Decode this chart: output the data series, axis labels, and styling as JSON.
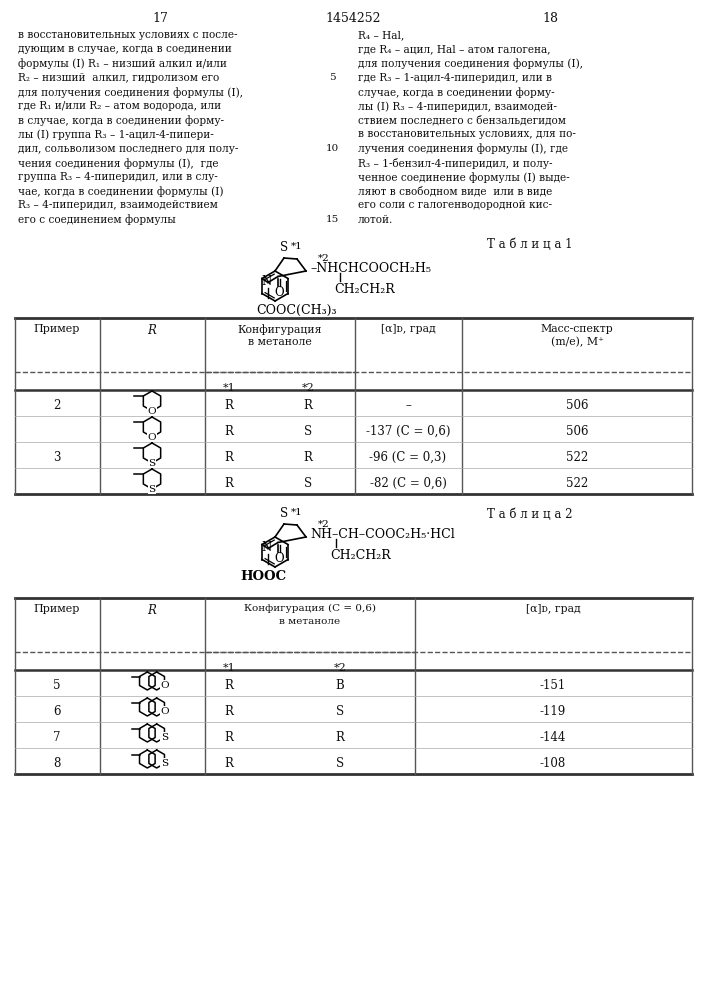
{
  "page_num_left": "17",
  "page_num_center": "1454252",
  "page_num_right": "18",
  "left_lines": [
    "в восстановительных условиях с после-",
    "дующим в случае, когда в соединении",
    "формулы (I) R₁ – низший алкил и/или",
    "R₂ – низший  алкил, гидролизом его",
    "для получения соединения формулы (I),",
    "где R₁ и/или R₂ – атом водорода, или",
    "в случае, когда в соединении форму-",
    "лы (I) группа R₃ – 1-ацил-4-пипери-",
    "дил, сольволизом последнего для полу-",
    "чения соединения формулы (I),  где",
    "группа R₃ – 4-пиперидил, или в слу-",
    "чае, когда в соединении формулы (I)",
    "R₃ – 4-пиперидил, взаимодействием",
    "его с соединением формулы"
  ],
  "right_lines": [
    "R₄ – Hal,",
    "где R₄ – ацил, Hal – атом галогена,",
    "для получения соединения формулы (I),",
    "где R₃ – 1-ацил-4-пиперидил, или в",
    "случае, когда в соединении форму-",
    "лы (I) R₃ – 4-пиперидил, взаимодей-",
    "ствием последнего с бензальдегидом",
    "в восстановительных условиях, для по-",
    "лучения соединения формулы (I), где",
    "R₃ – 1-бензил-4-пиперидил, и полу-",
    "ченное соединение формулы (I) выде-",
    "ляют в свободном виде  или в виде",
    "его соли с галогенводородной кис-",
    "лотой."
  ],
  "line_num_indices": [
    3,
    8,
    13
  ],
  "line_num_values": [
    "5",
    "10",
    "15"
  ],
  "tablitsa1": "Т а б л и ц а 1",
  "tablitsa2": "Т а б л и ц а 2",
  "table1_rows": [
    {
      "primer": "2",
      "config1": "R",
      "config2": "R",
      "alpha": "–",
      "mass": "506"
    },
    {
      "primer": "",
      "config1": "R",
      "config2": "S",
      "alpha": "-137 (C = 0,6)",
      "mass": "506"
    },
    {
      "primer": "3",
      "config1": "R",
      "config2": "R",
      "alpha": "-96 (C = 0,3)",
      "mass": "522"
    },
    {
      "primer": "",
      "config1": "R",
      "config2": "S",
      "alpha": "-82 (C = 0,6)",
      "mass": "522"
    }
  ],
  "table1_r_types": [
    "O",
    "O",
    "S",
    "S"
  ],
  "table2_rows": [
    {
      "primer": "5",
      "config1": "R",
      "config2": "B",
      "alpha": "-151"
    },
    {
      "primer": "6",
      "config1": "R",
      "config2": "S",
      "alpha": "-119"
    },
    {
      "primer": "7",
      "config1": "R",
      "config2": "R",
      "alpha": "-144"
    },
    {
      "primer": "8",
      "config1": "R",
      "config2": "S",
      "alpha": "-108"
    }
  ],
  "table2_r_types": [
    "O",
    "O",
    "S",
    "S"
  ],
  "bg_color": "#ffffff"
}
